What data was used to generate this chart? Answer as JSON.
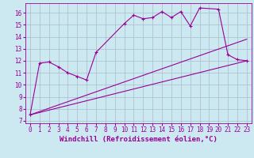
{
  "xlabel": "Windchill (Refroidissement éolien,°C)",
  "bg_color": "#cce8f0",
  "line_color": "#990099",
  "grid_color": "#aabbcc",
  "xlim": [
    -0.5,
    23.5
  ],
  "ylim": [
    6.8,
    16.8
  ],
  "xticks": [
    0,
    1,
    2,
    3,
    4,
    5,
    6,
    7,
    8,
    9,
    10,
    11,
    12,
    13,
    14,
    15,
    16,
    17,
    18,
    19,
    20,
    21,
    22,
    23
  ],
  "yticks": [
    7,
    8,
    9,
    10,
    11,
    12,
    13,
    14,
    15,
    16
  ],
  "line1_x": [
    0,
    1,
    2,
    3,
    4,
    5,
    6,
    7,
    10,
    11,
    12,
    13,
    14,
    15,
    16,
    17,
    18,
    20,
    21,
    22,
    23
  ],
  "line1_y": [
    7.5,
    11.8,
    11.9,
    11.5,
    11.0,
    10.7,
    10.4,
    12.7,
    15.1,
    15.8,
    15.5,
    15.6,
    16.1,
    15.6,
    16.1,
    14.9,
    16.4,
    16.3,
    12.5,
    12.1,
    12.0
  ],
  "line2_x": [
    0,
    23
  ],
  "line2_y": [
    7.5,
    13.8
  ],
  "line3_x": [
    0,
    23
  ],
  "line3_y": [
    7.5,
    12.0
  ],
  "xlabel_fontsize": 6.5,
  "tick_fontsize": 5.5
}
